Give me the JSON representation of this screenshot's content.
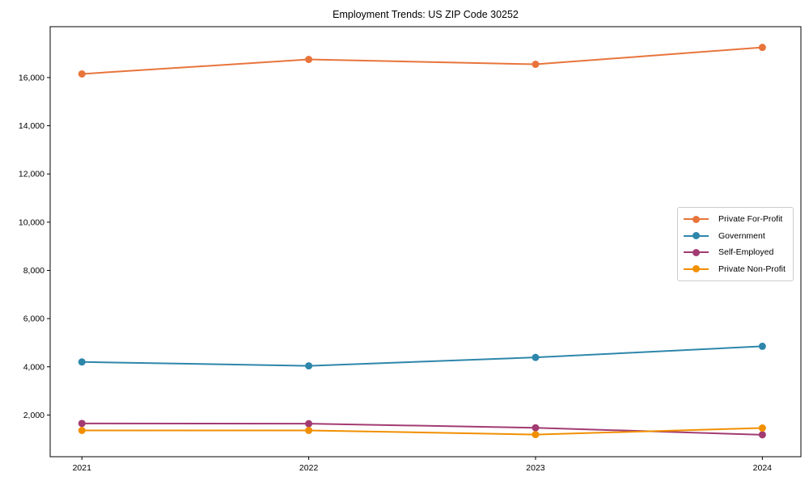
{
  "figure": {
    "title": "Employment Trends: US ZIP Code 30252",
    "background": "#ffffff",
    "axis_color": "#000000",
    "legend_border_color": "#cccccc"
  },
  "chart_data": {
    "type": "line",
    "title": "Employment Trends: US ZIP Code 30252",
    "xlabel": "",
    "ylabel": "",
    "x": [
      2021,
      2022,
      2023,
      2024
    ],
    "xticks": [
      2021,
      2022,
      2023,
      2024
    ],
    "yticks": [
      2000,
      4000,
      6000,
      8000,
      10000,
      12000,
      14000,
      16000
    ],
    "xlim": [
      2020.86,
      2024.17
    ],
    "ylim": [
      270,
      18110
    ],
    "grid": false,
    "legend_position": "center-right",
    "marker": "circle",
    "series": [
      {
        "name": "Private For-Profit",
        "color": "#E8743B",
        "values": [
          16150,
          16750,
          16550,
          17250
        ]
      },
      {
        "name": "Government",
        "color": "#2E86AB",
        "values": [
          4200,
          4040,
          4390,
          4850
        ]
      },
      {
        "name": "Self-Employed",
        "color": "#A23B72",
        "values": [
          1650,
          1640,
          1470,
          1180
        ]
      },
      {
        "name": "Private Non-Profit",
        "color": "#F18F01",
        "values": [
          1360,
          1360,
          1190,
          1460
        ]
      }
    ]
  }
}
